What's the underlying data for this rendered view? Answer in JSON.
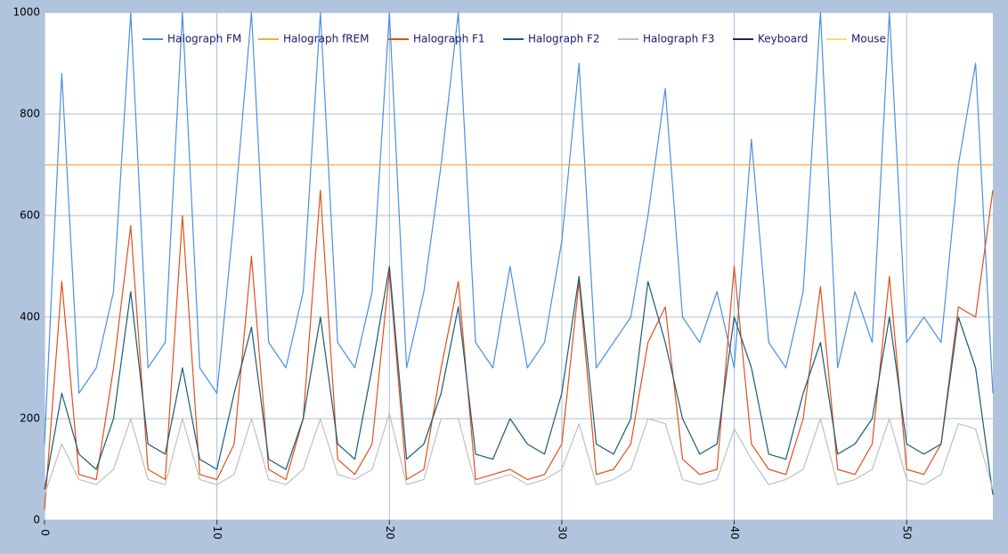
{
  "chart_data": {
    "type": "line",
    "x": [
      0,
      1,
      2,
      3,
      4,
      5,
      6,
      7,
      8,
      9,
      10,
      11,
      12,
      13,
      14,
      15,
      16,
      17,
      18,
      19,
      20,
      21,
      22,
      23,
      24,
      25,
      26,
      27,
      28,
      29,
      30,
      31,
      32,
      33,
      34,
      35,
      36,
      37,
      38,
      39,
      40,
      41,
      42,
      43,
      44,
      45,
      46,
      47,
      48,
      49,
      50,
      51,
      52,
      53,
      54,
      55
    ],
    "xlim": [
      0,
      55
    ],
    "xticks": [
      0,
      10,
      20,
      30,
      40,
      50
    ],
    "ylim": [
      0,
      1000
    ],
    "yticks": [
      0,
      200,
      400,
      600,
      800,
      1000
    ],
    "grid": true,
    "legend": "top",
    "series": [
      {
        "name": "Halograph FM",
        "color": "#4a8fe0",
        "values": [
          150,
          880,
          250,
          300,
          450,
          1000,
          300,
          350,
          1000,
          300,
          250,
          600,
          1000,
          350,
          300,
          450,
          1000,
          350,
          300,
          450,
          1000,
          300,
          450,
          700,
          1000,
          350,
          300,
          500,
          300,
          350,
          550,
          900,
          300,
          350,
          400,
          600,
          850,
          400,
          350,
          450,
          300,
          750,
          350,
          300,
          450,
          1000,
          300,
          450,
          350,
          1000,
          350,
          400,
          350,
          700,
          900,
          250
        ]
      },
      {
        "name": "Halograph fREM",
        "color": "#f0b030",
        "values": [
          700,
          700,
          700,
          700,
          700,
          700,
          700,
          700,
          700,
          700,
          700,
          700,
          700,
          700,
          700,
          700,
          700,
          700,
          700,
          700,
          700,
          700,
          700,
          700,
          700,
          700,
          700,
          700,
          700,
          700,
          700,
          700,
          700,
          700,
          700,
          700,
          700,
          700,
          700,
          700,
          700,
          700,
          700,
          700,
          700,
          700,
          700,
          700,
          700,
          700,
          700,
          700,
          700,
          700,
          700,
          700
        ]
      },
      {
        "name": "Halograph F1",
        "color": "#e0501a",
        "values": [
          20,
          470,
          90,
          80,
          300,
          580,
          100,
          80,
          600,
          90,
          80,
          150,
          520,
          100,
          80,
          200,
          650,
          120,
          90,
          150,
          490,
          80,
          100,
          300,
          470,
          80,
          90,
          100,
          80,
          90,
          150,
          470,
          90,
          100,
          150,
          350,
          420,
          120,
          90,
          100,
          500,
          150,
          100,
          90,
          200,
          460,
          100,
          90,
          150,
          480,
          100,
          90,
          150,
          420,
          400,
          650
        ]
      },
      {
        "name": "Halograph F2",
        "color": "#1a5a78",
        "values": [
          60,
          250,
          130,
          100,
          200,
          450,
          150,
          130,
          300,
          120,
          100,
          250,
          380,
          120,
          100,
          200,
          400,
          150,
          120,
          300,
          500,
          120,
          150,
          250,
          420,
          130,
          120,
          200,
          150,
          130,
          250,
          480,
          150,
          130,
          200,
          470,
          350,
          200,
          130,
          150,
          400,
          300,
          130,
          120,
          250,
          350,
          130,
          150,
          200,
          400,
          150,
          130,
          150,
          400,
          300,
          50
        ]
      },
      {
        "name": "Halograph F3",
        "color": "#c0c0c0",
        "values": [
          50,
          150,
          80,
          70,
          100,
          200,
          80,
          70,
          200,
          80,
          70,
          90,
          200,
          80,
          70,
          100,
          200,
          90,
          80,
          100,
          210,
          70,
          80,
          200,
          200,
          70,
          80,
          90,
          70,
          80,
          100,
          190,
          70,
          80,
          100,
          200,
          190,
          80,
          70,
          80,
          180,
          120,
          70,
          80,
          100,
          200,
          70,
          80,
          100,
          200,
          80,
          70,
          90,
          190,
          180,
          60
        ]
      },
      {
        "name": "Keyboard",
        "color": "#1a2a50",
        "values": [
          null,
          null,
          null,
          null,
          null,
          null,
          null,
          null,
          null,
          null,
          null,
          null,
          null,
          null,
          null,
          null,
          null,
          null,
          null,
          null,
          null,
          null,
          null,
          null,
          null,
          null,
          null,
          null,
          null,
          null,
          null,
          null,
          null,
          null,
          null,
          null,
          null,
          null,
          null,
          null,
          null,
          null,
          null,
          null,
          null,
          null,
          null,
          null,
          null,
          null,
          null,
          null,
          null,
          null,
          null,
          null
        ]
      },
      {
        "name": "Mouse",
        "color": "#f5e070",
        "values": [
          null,
          null,
          null,
          null,
          null,
          null,
          null,
          null,
          null,
          null,
          null,
          null,
          null,
          null,
          null,
          null,
          null,
          null,
          null,
          null,
          null,
          null,
          null,
          null,
          null,
          null,
          null,
          null,
          null,
          null,
          null,
          null,
          null,
          null,
          null,
          null,
          null,
          null,
          null,
          null,
          null,
          null,
          null,
          null,
          null,
          null,
          null,
          null,
          null,
          null,
          null,
          null,
          null,
          null,
          null,
          null
        ]
      }
    ]
  }
}
